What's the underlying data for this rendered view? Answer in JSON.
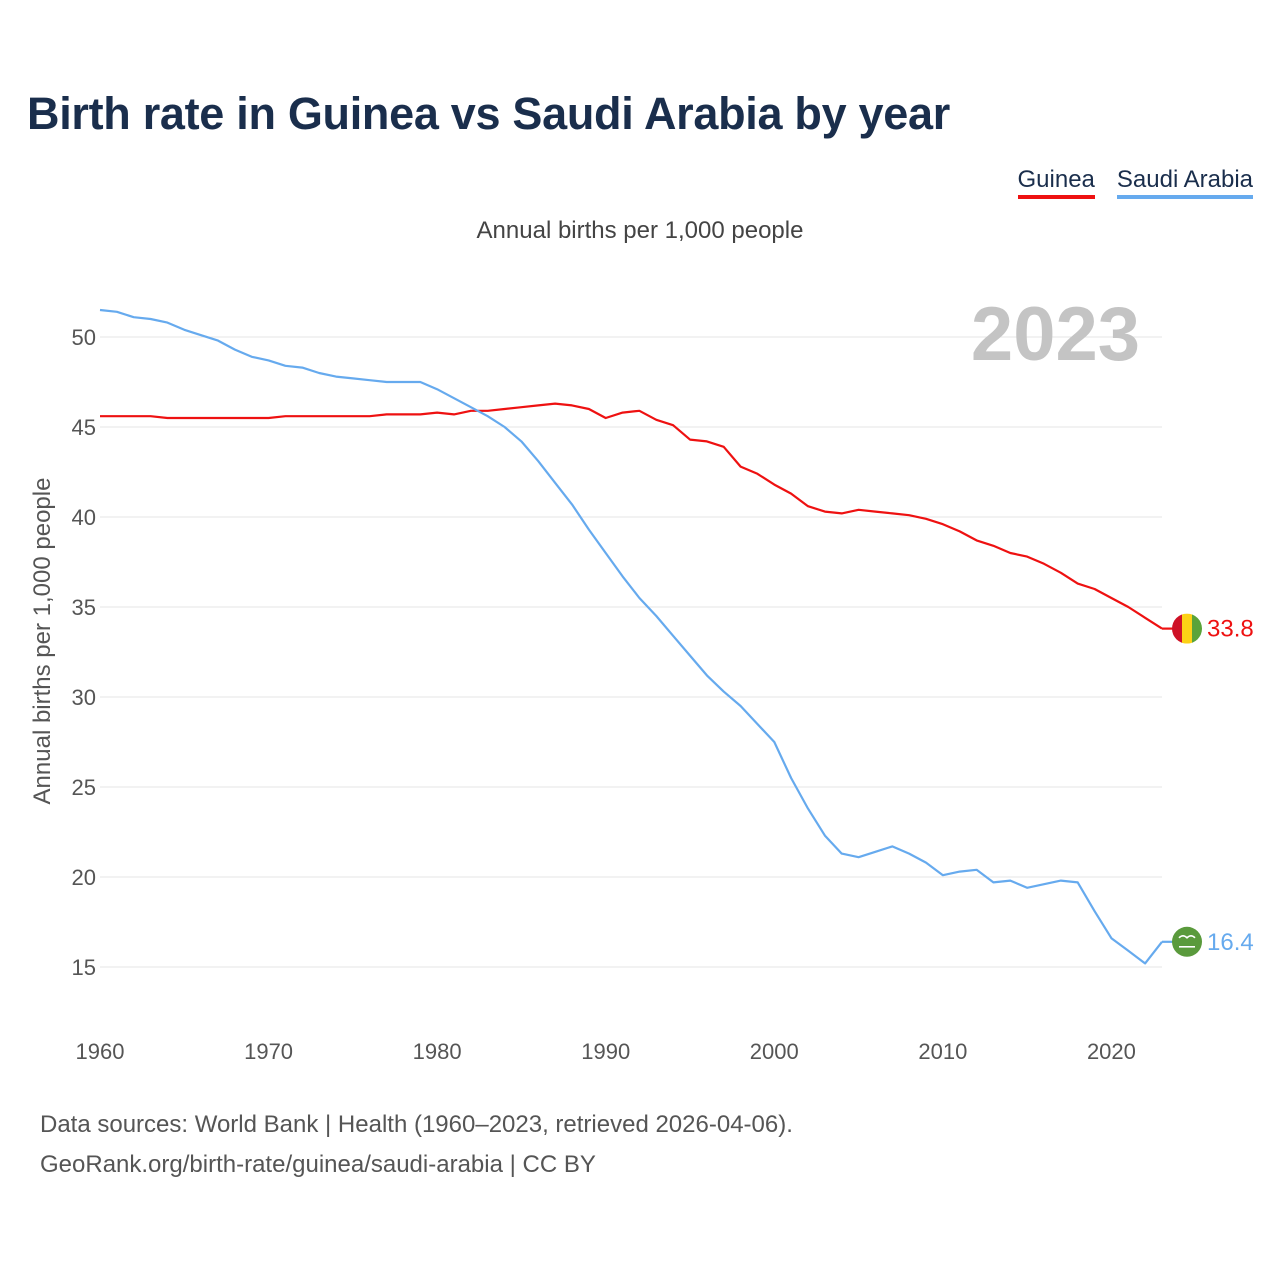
{
  "title": "Birth rate in Guinea vs Saudi Arabia by year",
  "subtitle": "Annual births per 1,000 people",
  "legend": [
    {
      "name": "Guinea",
      "color": "#ee1111"
    },
    {
      "name": "Saudi Arabia",
      "color": "#66aaee"
    }
  ],
  "year_label": "2023",
  "footer": {
    "line1": "Data sources: World Bank | Health (1960–2023, retrieved 2026-04-06).",
    "line2": "GeoRank.org/birth-rate/guinea/saudi-arabia | CC BY"
  },
  "colors": {
    "guinea": "#ee1111",
    "saudi": "#66aaee",
    "grid": "#e6e6e6",
    "tick": "#555555",
    "year_watermark": "#c4c4c4",
    "flag_guinea": [
      "#ce1126",
      "#fcd116",
      "#5aa33a"
    ],
    "flag_saudi": "#5a9a3c"
  },
  "chart_data": {
    "type": "line",
    "title": "Birth rate in Guinea vs Saudi Arabia by year",
    "ylabel": "Annual births per 1,000 people",
    "xlabel": "",
    "xlim": [
      1960,
      2023
    ],
    "ylim": [
      12.5,
      52.5
    ],
    "x_ticks": [
      1960,
      1970,
      1980,
      1990,
      2000,
      2010,
      2020
    ],
    "y_ticks": [
      15,
      20,
      25,
      30,
      35,
      40,
      45,
      50
    ],
    "grid": true,
    "legend_position": "top-right",
    "x": [
      1960,
      1961,
      1962,
      1963,
      1964,
      1965,
      1966,
      1967,
      1968,
      1969,
      1970,
      1971,
      1972,
      1973,
      1974,
      1975,
      1976,
      1977,
      1978,
      1979,
      1980,
      1981,
      1982,
      1983,
      1984,
      1985,
      1986,
      1987,
      1988,
      1989,
      1990,
      1991,
      1992,
      1993,
      1994,
      1995,
      1996,
      1997,
      1998,
      1999,
      2000,
      2001,
      2002,
      2003,
      2004,
      2005,
      2006,
      2007,
      2008,
      2009,
      2010,
      2011,
      2012,
      2013,
      2014,
      2015,
      2016,
      2017,
      2018,
      2019,
      2020,
      2021,
      2022,
      2023
    ],
    "series": [
      {
        "name": "Guinea",
        "end_label": "33.8",
        "values": [
          45.6,
          45.6,
          45.6,
          45.6,
          45.5,
          45.5,
          45.5,
          45.5,
          45.5,
          45.5,
          45.5,
          45.6,
          45.6,
          45.6,
          45.6,
          45.6,
          45.6,
          45.7,
          45.7,
          45.7,
          45.8,
          45.7,
          45.9,
          45.9,
          46.0,
          46.1,
          46.2,
          46.3,
          46.2,
          46.0,
          45.5,
          45.8,
          45.9,
          45.4,
          45.1,
          44.3,
          44.2,
          43.9,
          42.8,
          42.4,
          41.8,
          41.3,
          40.6,
          40.3,
          40.2,
          40.4,
          40.3,
          40.2,
          40.1,
          39.9,
          39.6,
          39.2,
          38.7,
          38.4,
          38.0,
          37.8,
          37.4,
          36.9,
          36.3,
          36.0,
          35.5,
          35.0,
          34.4,
          33.8
        ]
      },
      {
        "name": "Saudi Arabia",
        "end_label": "16.4",
        "values": [
          51.5,
          51.4,
          51.1,
          51.0,
          50.8,
          50.4,
          50.1,
          49.8,
          49.3,
          48.9,
          48.7,
          48.4,
          48.3,
          48.0,
          47.8,
          47.7,
          47.6,
          47.5,
          47.5,
          47.5,
          47.1,
          46.6,
          46.1,
          45.6,
          45.0,
          44.2,
          43.1,
          41.9,
          40.7,
          39.3,
          38.0,
          36.7,
          35.5,
          34.5,
          33.4,
          32.3,
          31.2,
          30.3,
          29.5,
          28.5,
          27.5,
          25.5,
          23.8,
          22.3,
          21.3,
          21.1,
          21.4,
          21.7,
          21.3,
          20.8,
          20.1,
          20.3,
          20.4,
          19.7,
          19.8,
          19.4,
          19.6,
          19.8,
          19.7,
          18.1,
          16.6,
          15.9,
          15.2,
          16.4
        ]
      }
    ]
  }
}
